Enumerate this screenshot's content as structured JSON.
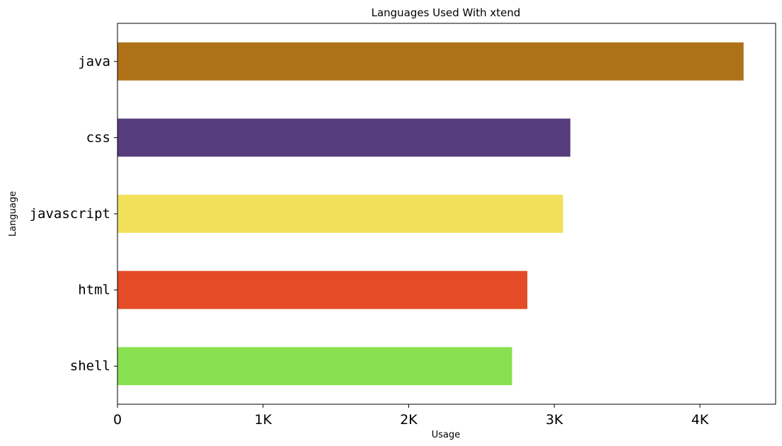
{
  "chart_data": {
    "type": "bar",
    "orientation": "horizontal",
    "title": "Languages Used With xtend",
    "xlabel": "Usage",
    "ylabel": "Language",
    "categories": [
      "java",
      "css",
      "javascript",
      "html",
      "shell"
    ],
    "values": [
      4300,
      3110,
      3060,
      2815,
      2710
    ],
    "colors": [
      "#b07219",
      "#563d7c",
      "#f1e05a",
      "#e34c26",
      "#89e051"
    ],
    "xlim": [
      0,
      4520
    ],
    "xticks": [
      0,
      1000,
      2000,
      3000,
      4000
    ],
    "xtick_labels": [
      "0",
      "1K",
      "2K",
      "3K",
      "4K"
    ],
    "grid": false,
    "legend": "none"
  }
}
